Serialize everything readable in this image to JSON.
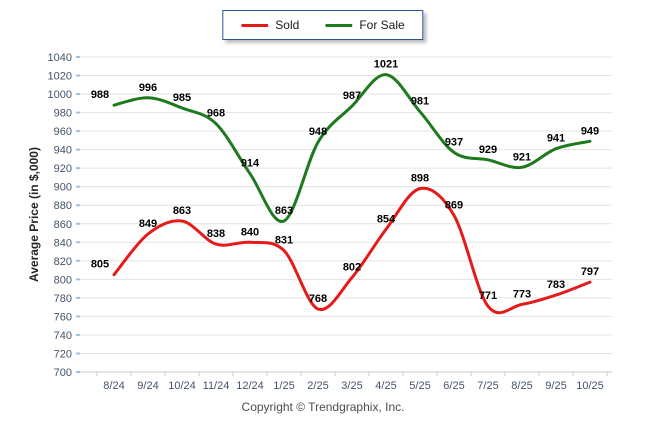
{
  "chart_data": {
    "type": "line",
    "title": "",
    "xlabel": "",
    "ylabel": "Average Price (in $,000)",
    "ylim": [
      700,
      1040
    ],
    "ytick_step": 20,
    "grid": "horizontal",
    "legend_position": "top-center",
    "categories": [
      "8/24",
      "9/24",
      "10/24",
      "11/24",
      "12/24",
      "1/25",
      "2/25",
      "3/25",
      "4/25",
      "5/25",
      "6/25",
      "7/25",
      "8/25",
      "9/25",
      "10/25"
    ],
    "series": [
      {
        "name": "Sold",
        "color": "#e31b1b",
        "values": [
          805,
          849,
          863,
          838,
          840,
          831,
          768,
          802,
          854,
          898,
          869,
          771,
          773,
          783,
          797
        ]
      },
      {
        "name": "For Sale",
        "color": "#1e7a1e",
        "values": [
          988,
          996,
          985,
          968,
          914,
          863,
          948,
          987,
          1021,
          981,
          937,
          929,
          921,
          941,
          949
        ]
      }
    ],
    "colors": {
      "gridline": "#e3e3e3",
      "axis_line": "#c8c8c8",
      "y_tick_mark": "#9cc2e5",
      "tick_label": "#44546a",
      "data_label": "#000000",
      "axis_title": "#262626"
    }
  },
  "footer": {
    "copyright": "Copyright © Trendgraphix, Inc."
  }
}
